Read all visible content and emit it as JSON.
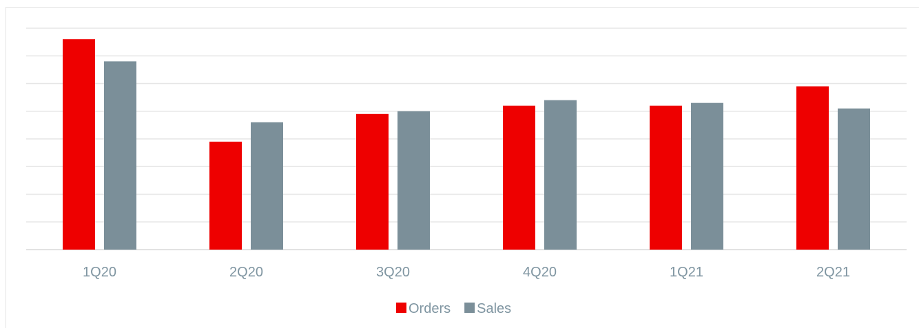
{
  "chart_data": {
    "type": "bar",
    "categories": [
      "1Q20",
      "2Q20",
      "3Q20",
      "4Q20",
      "1Q21",
      "2Q21"
    ],
    "series": [
      {
        "name": "Orders",
        "color": "#ee0000",
        "values": [
          7.6,
          3.9,
          4.9,
          5.2,
          5.2,
          5.9
        ]
      },
      {
        "name": "Sales",
        "color": "#7b8f99",
        "values": [
          6.8,
          4.6,
          5.0,
          5.4,
          5.3,
          5.1
        ]
      }
    ],
    "ylim": [
      0,
      8
    ],
    "grid": true,
    "legend": "bottom-center",
    "title": "",
    "xlabel": "",
    "ylabel": ""
  }
}
